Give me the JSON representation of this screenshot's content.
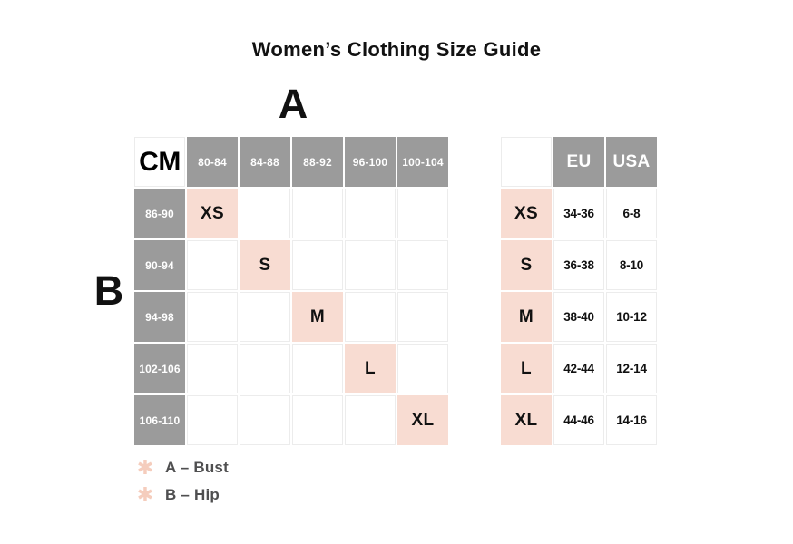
{
  "title": "Women’s Clothing Size Guide",
  "annotations": {
    "bust_label": "A",
    "hip_label": "B"
  },
  "chart_data": [
    {
      "type": "table",
      "name": "cm-size-matrix",
      "unit_label": "CM",
      "bust_columns": [
        "80-84",
        "84-88",
        "88-92",
        "96-100",
        "100-104"
      ],
      "rows": [
        {
          "hip": "86-90",
          "size": "XS",
          "col": 0
        },
        {
          "hip": "90-94",
          "size": "S",
          "col": 1
        },
        {
          "hip": "94-98",
          "size": "M",
          "col": 2
        },
        {
          "hip": "102-106",
          "size": "L",
          "col": 3
        },
        {
          "hip": "106-110",
          "size": "XL",
          "col": 4
        }
      ]
    },
    {
      "type": "table",
      "name": "eu-usa-conversion",
      "columns": [
        "EU",
        "USA"
      ],
      "rows": [
        {
          "size": "XS",
          "eu": "34-36",
          "usa": "6-8"
        },
        {
          "size": "S",
          "eu": "36-38",
          "usa": "8-10"
        },
        {
          "size": "M",
          "eu": "38-40",
          "usa": "10-12"
        },
        {
          "size": "L",
          "eu": "42-44",
          "usa": "12-14"
        },
        {
          "size": "XL",
          "eu": "44-46",
          "usa": "14-16"
        }
      ]
    }
  ],
  "legend": {
    "icon_glyph": "✱",
    "items": [
      {
        "icon": "asterisk-icon",
        "label": "A – Bust"
      },
      {
        "icon": "asterisk-icon",
        "label": "B – Hip"
      }
    ]
  },
  "colors": {
    "header_gray": "#9b9b9b",
    "highlight_pink": "#f8dcd2",
    "asterisk_pink": "#f5cdbd",
    "text_dark": "#141414",
    "legend_text": "#4f4f50",
    "cell_border": "#ececec"
  }
}
